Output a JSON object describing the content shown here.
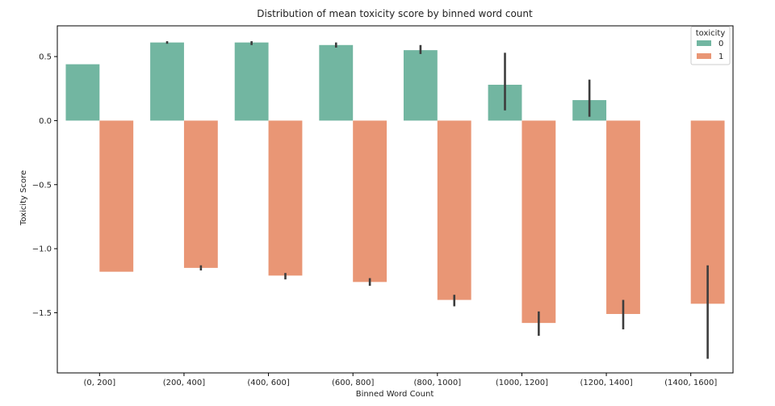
{
  "chart_data": {
    "type": "bar",
    "title": "Distribution of mean toxicity score by binned word count",
    "xlabel": "Binned Word Count",
    "ylabel": "Toxicity Score",
    "categories": [
      "(0, 200]",
      "(200, 400]",
      "(400, 600]",
      "(600, 800]",
      "(800, 1000]",
      "(1000, 1200]",
      "(1200, 1400]",
      "(1400, 1600]"
    ],
    "ylim": [
      -1.97,
      0.74
    ],
    "yticks": [
      0.5,
      0.0,
      -0.5,
      -1.0,
      -1.5
    ],
    "ytick_labels": [
      "0.5",
      "0.0",
      "−0.5",
      "−1.0",
      "−1.5"
    ],
    "legend_title": "toxicity",
    "legend_position": "top-right",
    "grid": false,
    "series": [
      {
        "name": "0",
        "color": "#72b6a1",
        "values": [
          0.44,
          0.61,
          0.61,
          0.59,
          0.55,
          0.28,
          0.16,
          null
        ],
        "ci_low": [
          null,
          0.6,
          0.59,
          0.57,
          0.52,
          0.08,
          0.03,
          null
        ],
        "ci_high": [
          null,
          0.62,
          0.62,
          0.61,
          0.59,
          0.53,
          0.32,
          null
        ]
      },
      {
        "name": "1",
        "color": "#e99675",
        "values": [
          -1.18,
          -1.15,
          -1.21,
          -1.26,
          -1.4,
          -1.58,
          -1.51,
          -1.43
        ],
        "ci_low": [
          null,
          -1.17,
          -1.24,
          -1.29,
          -1.45,
          -1.68,
          -1.63,
          -1.86
        ],
        "ci_high": [
          null,
          -1.13,
          -1.19,
          -1.23,
          -1.36,
          -1.49,
          -1.4,
          -1.13
        ]
      }
    ]
  }
}
